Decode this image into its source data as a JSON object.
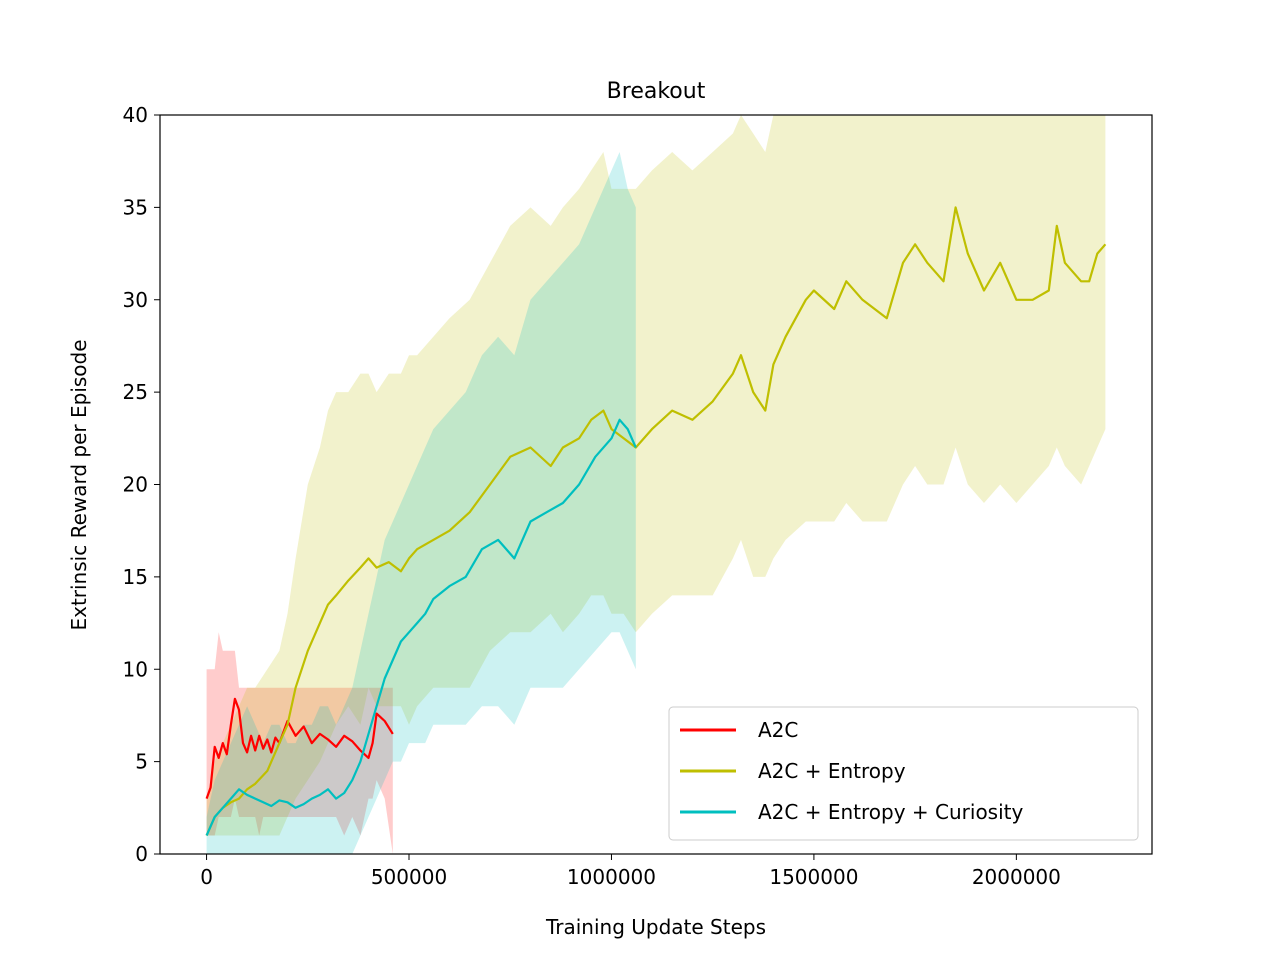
{
  "chart_data": {
    "type": "line",
    "title": "Breakout",
    "xlabel": "Training Update Steps",
    "ylabel": "Extrinsic Reward per Episode",
    "xlim": [
      -115000,
      2335000
    ],
    "ylim": [
      0,
      40
    ],
    "xticks": [
      0,
      500000,
      1000000,
      1500000,
      2000000
    ],
    "xtick_labels": [
      "0",
      "500000",
      "1000000",
      "1500000",
      "2000000"
    ],
    "yticks": [
      0,
      5,
      10,
      15,
      20,
      25,
      30,
      35,
      40
    ],
    "ytick_labels": [
      "0",
      "5",
      "10",
      "15",
      "20",
      "25",
      "30",
      "35",
      "40"
    ],
    "grid": false,
    "legend_position": "lower-right",
    "series": [
      {
        "name": "A2C",
        "color": "#ff0000",
        "x": [
          0,
          10000,
          20000,
          30000,
          40000,
          50000,
          60000,
          70000,
          80000,
          90000,
          100000,
          110000,
          120000,
          130000,
          140000,
          150000,
          160000,
          170000,
          180000,
          200000,
          220000,
          240000,
          260000,
          280000,
          300000,
          320000,
          340000,
          360000,
          380000,
          400000,
          410000,
          420000,
          440000,
          460000
        ],
        "y": [
          3,
          3.6,
          5.8,
          5.2,
          6.0,
          5.4,
          7.0,
          8.4,
          7.8,
          6.0,
          5.5,
          6.4,
          5.6,
          6.4,
          5.7,
          6.2,
          5.5,
          6.3,
          6.0,
          7.2,
          6.4,
          6.9,
          6.0,
          6.5,
          6.2,
          5.8,
          6.4,
          6.1,
          5.6,
          5.2,
          6.0,
          7.6,
          7.2,
          6.5
        ],
        "band_low": [
          1,
          1,
          1,
          2,
          2,
          2,
          2,
          3,
          2,
          2,
          2,
          2,
          2,
          1,
          2,
          2,
          2,
          2,
          2,
          2,
          2,
          2,
          2,
          2,
          2,
          2,
          1,
          2,
          1,
          3,
          3,
          4,
          3,
          0
        ],
        "band_high": [
          10,
          10,
          10,
          12,
          11,
          11,
          11,
          11,
          9,
          9,
          9,
          9,
          9,
          9,
          9,
          9,
          9,
          9,
          9,
          9,
          9,
          9,
          9,
          9,
          9,
          9,
          9,
          9,
          9,
          9,
          9,
          9,
          9,
          9
        ]
      },
      {
        "name": "A2C + Entropy",
        "color": "#bfbf00",
        "x": [
          0,
          20000,
          40000,
          60000,
          80000,
          100000,
          120000,
          150000,
          180000,
          200000,
          220000,
          250000,
          280000,
          300000,
          320000,
          350000,
          380000,
          400000,
          420000,
          450000,
          480000,
          500000,
          520000,
          560000,
          600000,
          650000,
          700000,
          750000,
          800000,
          850000,
          880000,
          920000,
          950000,
          980000,
          1000000,
          1030000,
          1060000,
          1100000,
          1150000,
          1200000,
          1250000,
          1300000,
          1320000,
          1350000,
          1380000,
          1400000,
          1430000,
          1480000,
          1500000,
          1550000,
          1580000,
          1620000,
          1680000,
          1720000,
          1750000,
          1780000,
          1820000,
          1850000,
          1880000,
          1920000,
          1960000,
          2000000,
          2040000,
          2080000,
          2100000,
          2120000,
          2160000,
          2180000,
          2200000,
          2220000
        ],
        "y": [
          1,
          2.0,
          2.5,
          2.8,
          3.0,
          3.5,
          3.8,
          4.5,
          6.0,
          7.0,
          9.0,
          11.0,
          12.5,
          13.5,
          14.0,
          14.8,
          15.5,
          16.0,
          15.5,
          15.8,
          15.3,
          16.0,
          16.5,
          17.0,
          17.5,
          18.5,
          20.0,
          21.5,
          22.0,
          21.0,
          22.0,
          22.5,
          23.5,
          24.0,
          23.0,
          22.5,
          22.0,
          23.0,
          24.0,
          23.5,
          24.5,
          26.0,
          27.0,
          25.0,
          24.0,
          26.5,
          28.0,
          30.0,
          30.5,
          29.5,
          31.0,
          30.0,
          29.0,
          32.0,
          33.0,
          32.0,
          31.0,
          35.0,
          32.5,
          30.5,
          32.0,
          30.0,
          30.0,
          30.5,
          34.0,
          32.0,
          31.0,
          31.0,
          32.5,
          33.0
        ],
        "band_low": [
          1,
          1,
          1,
          1,
          1,
          1,
          1,
          1,
          1,
          2,
          3,
          4,
          5,
          6,
          7,
          8,
          7,
          9,
          8,
          8,
          8,
          7,
          8,
          9,
          9,
          9,
          11,
          12,
          12,
          13,
          12,
          13,
          14,
          14,
          13,
          13,
          12,
          13,
          14,
          14,
          14,
          16,
          17,
          15,
          15,
          16,
          17,
          18,
          18,
          18,
          19,
          18,
          18,
          20,
          21,
          20,
          20,
          22,
          20,
          19,
          20,
          19,
          20,
          21,
          22,
          21,
          20,
          21,
          22,
          23
        ],
        "band_high": [
          3,
          5,
          6,
          7,
          8,
          9,
          9,
          10,
          11,
          13,
          16,
          20,
          22,
          24,
          25,
          25,
          26,
          26,
          25,
          26,
          26,
          27,
          27,
          28,
          29,
          30,
          32,
          34,
          35,
          34,
          35,
          36,
          37,
          38,
          36,
          36,
          36,
          37,
          38,
          37,
          38,
          39,
          40,
          39,
          38,
          40,
          40,
          40,
          40,
          40,
          40,
          40,
          40,
          40,
          40,
          40,
          40,
          40,
          40,
          40,
          40,
          40,
          40,
          40,
          40,
          40,
          40,
          40,
          40,
          40
        ]
      },
      {
        "name": "A2C + Entropy + Curiosity",
        "color": "#00bfbf",
        "x": [
          0,
          10000,
          20000,
          40000,
          60000,
          80000,
          100000,
          120000,
          140000,
          160000,
          180000,
          200000,
          220000,
          240000,
          260000,
          280000,
          300000,
          320000,
          340000,
          360000,
          380000,
          400000,
          420000,
          440000,
          460000,
          480000,
          500000,
          520000,
          540000,
          560000,
          600000,
          640000,
          680000,
          720000,
          760000,
          800000,
          840000,
          880000,
          920000,
          960000,
          1000000,
          1020000,
          1040000,
          1060000
        ],
        "y": [
          1,
          1.5,
          2.0,
          2.5,
          3.0,
          3.5,
          3.2,
          3.0,
          2.8,
          2.6,
          2.9,
          2.8,
          2.5,
          2.7,
          3.0,
          3.2,
          3.5,
          3.0,
          3.3,
          4.0,
          5.0,
          6.5,
          8.0,
          9.5,
          10.5,
          11.5,
          12.0,
          12.5,
          13.0,
          13.8,
          14.5,
          15.0,
          16.5,
          17.0,
          16.0,
          18.0,
          18.5,
          19.0,
          20.0,
          21.5,
          22.5,
          23.5,
          23.0,
          22.0
        ],
        "band_low": [
          0,
          0,
          0,
          0,
          0,
          0,
          0,
          0,
          0,
          0,
          0,
          0,
          0,
          0,
          0,
          0,
          0,
          0,
          0,
          0,
          1,
          2,
          3,
          4,
          5,
          5,
          6,
          6,
          6,
          7,
          7,
          7,
          8,
          8,
          7,
          9,
          9,
          9,
          10,
          11,
          12,
          12,
          11,
          10
        ],
        "band_high": [
          2,
          3,
          4,
          5,
          6,
          7,
          8,
          7,
          6,
          7,
          7,
          6,
          6,
          7,
          7,
          8,
          8,
          7,
          8,
          9,
          11,
          13,
          15,
          17,
          18,
          19,
          20,
          21,
          22,
          23,
          24,
          25,
          27,
          28,
          27,
          30,
          31,
          32,
          33,
          35,
          37,
          38,
          36,
          35
        ]
      }
    ]
  }
}
